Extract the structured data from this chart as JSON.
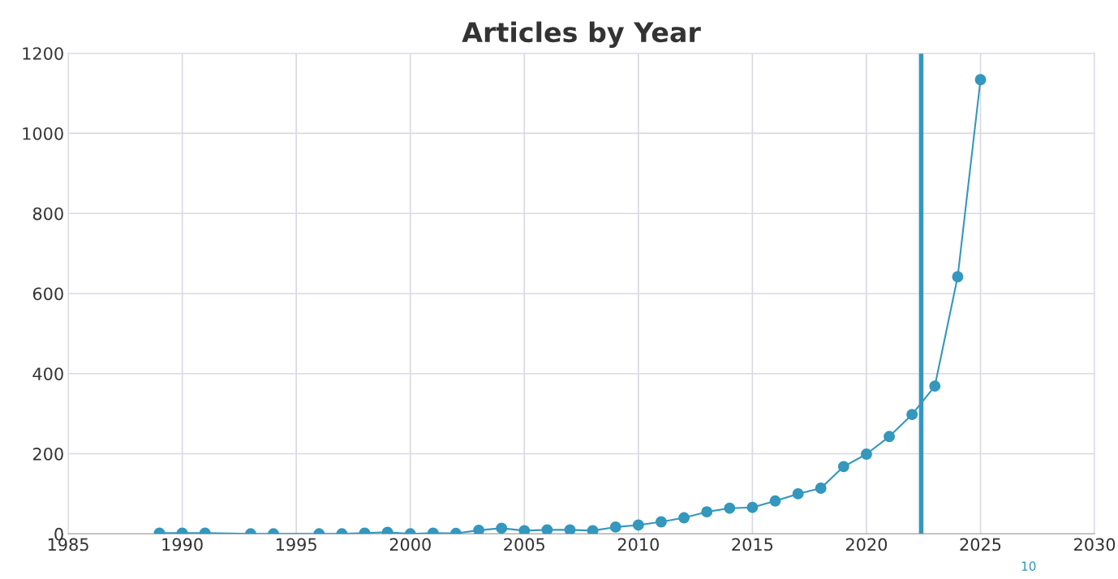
{
  "chart_data": {
    "type": "line",
    "title": "Articles by Year",
    "x": [
      1989,
      1990,
      1991,
      1993,
      1994,
      1996,
      1997,
      1998,
      1999,
      2000,
      2001,
      2002,
      2003,
      2004,
      2005,
      2006,
      2007,
      2008,
      2009,
      2010,
      2011,
      2012,
      2013,
      2014,
      2015,
      2016,
      2017,
      2018,
      2019,
      2020,
      2021,
      2022,
      2023,
      2024,
      2025
    ],
    "series": [
      {
        "color": "#3497bd",
        "values": [
          2,
          2,
          2,
          0,
          0,
          0,
          0,
          2,
          4,
          0,
          2,
          1,
          9,
          14,
          8,
          10,
          10,
          8,
          17,
          22,
          30,
          40,
          55,
          64,
          66,
          82,
          100,
          114,
          168,
          199,
          243,
          298,
          369,
          642,
          1134
        ]
      }
    ],
    "xlim": [
      1985,
      2030
    ],
    "xticks": [
      1985,
      1990,
      1995,
      2000,
      2005,
      2010,
      2015,
      2020,
      2025,
      2030
    ],
    "ylim": [
      0,
      1200
    ],
    "yticks": [
      0,
      200,
      400,
      600,
      800,
      1000,
      1200
    ],
    "ref_lines": [
      {
        "axis": "x",
        "value": 2022.4,
        "color": "#3497bd"
      }
    ],
    "annotations": [
      "10"
    ],
    "grid": true,
    "marker": "circle",
    "line_style": "solid",
    "legend": false
  }
}
